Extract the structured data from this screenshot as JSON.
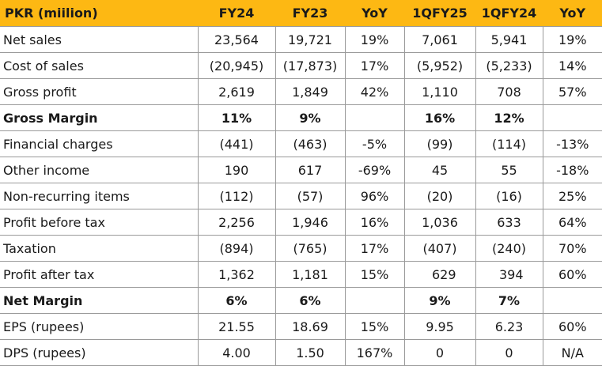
{
  "header": {
    "label": "PKR (miilion)",
    "cols": [
      "FY24",
      "FY23",
      "YoY",
      "1QFY25",
      "1QFY24",
      "YoY"
    ]
  },
  "rows": [
    {
      "label": "Net sales",
      "values": [
        "23,564",
        "19,721",
        "19%",
        "7,061",
        "5,941",
        "19%"
      ]
    },
    {
      "label": "Cost of sales",
      "values": [
        "(20,945)",
        "(17,873)",
        "17%",
        "(5,952)",
        "(5,233)",
        "14%"
      ]
    },
    {
      "label": "Gross profit",
      "values": [
        "2,619",
        "1,849",
        "42%",
        "1,110",
        "708",
        "57%"
      ]
    },
    {
      "label": "Gross Margin",
      "values": [
        "11%",
        "9%",
        "",
        "16%",
        "12%",
        ""
      ],
      "bold": true
    },
    {
      "label": "Financial charges",
      "values": [
        "(441)",
        "(463)",
        "-5%",
        "(99)",
        "(114)",
        "-13%"
      ]
    },
    {
      "label": "Other income",
      "values": [
        "190",
        "617",
        "-69%",
        "45",
        "55",
        "-18%"
      ]
    },
    {
      "label": "Non-recurring items",
      "values": [
        "(112)",
        "(57)",
        "96%",
        "(20)",
        "(16)",
        "25%"
      ]
    },
    {
      "label": "Profit before tax",
      "values": [
        "2,256",
        "1,946",
        "16%",
        "1,036",
        "633",
        "64%"
      ]
    },
    {
      "label": "Taxation",
      "values": [
        "(894)",
        "(765)",
        "17%",
        "(407)",
        "(240)",
        "70%"
      ]
    },
    {
      "label": "Profit after tax",
      "values": [
        "1,362",
        "1,181",
        "15%",
        "629",
        "394",
        "60%"
      ]
    },
    {
      "label": "Net Margin",
      "values": [
        "6%",
        "6%",
        "",
        "9%",
        "7%",
        ""
      ],
      "bold": true
    },
    {
      "label": "EPS (rupees)",
      "values": [
        "21.55",
        "18.69",
        "15%",
        "9.95",
        "6.23",
        "60%"
      ]
    },
    {
      "label": "DPS (rupees)",
      "values": [
        "4.00",
        "1.50",
        "167%",
        "0",
        "0",
        "N/A"
      ]
    }
  ],
  "colors": {
    "header_bg": "#fdb813",
    "grid": "#9a9a9a"
  }
}
